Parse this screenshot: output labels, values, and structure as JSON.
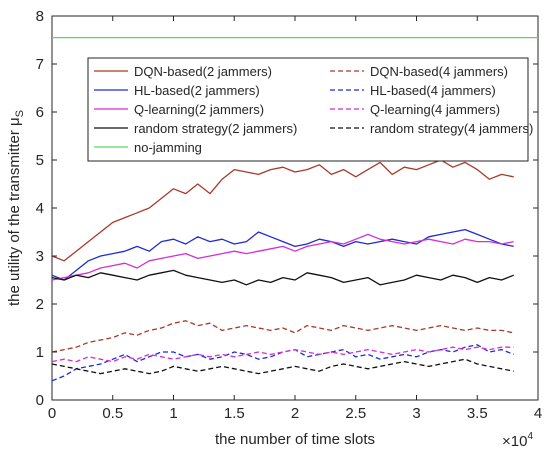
{
  "chart_data": {
    "type": "line",
    "title": "",
    "xlabel": "the number of time slots",
    "ylabel": "the utility of the transmitter μ",
    "ylabel_subscript": "S",
    "x_exponent": "×10",
    "x_exponent_power": "4",
    "xlim": [
      0,
      40000
    ],
    "ylim": [
      0,
      8
    ],
    "xticks": [
      0,
      5000,
      10000,
      15000,
      20000,
      25000,
      30000,
      35000,
      40000
    ],
    "xtick_labels": [
      "0",
      "0.5",
      "1",
      "1.5",
      "2",
      "2.5",
      "3",
      "3.5",
      "4"
    ],
    "yticks": [
      0,
      1,
      2,
      3,
      4,
      5,
      6,
      7,
      8
    ],
    "ytick_labels": [
      "0",
      "1",
      "2",
      "3",
      "4",
      "5",
      "6",
      "7",
      "8"
    ],
    "grid": false,
    "legend_position": "top-left-inside",
    "legend_columns": 2,
    "series": [
      {
        "name": "DQN-based(2 jammers)",
        "color": "#a83a2a",
        "dash": "solid",
        "x": [
          0,
          1000,
          2000,
          3000,
          4000,
          5000,
          6000,
          7000,
          8000,
          9000,
          10000,
          11000,
          12000,
          13000,
          14000,
          15000,
          16000,
          17000,
          18000,
          19000,
          20000,
          21000,
          22000,
          23000,
          24000,
          25000,
          26000,
          27000,
          28000,
          29000,
          30000,
          31000,
          32000,
          33000,
          34000,
          35000,
          36000,
          37000,
          38000
        ],
        "y": [
          3.0,
          2.9,
          3.1,
          3.3,
          3.5,
          3.7,
          3.8,
          3.9,
          4.0,
          4.2,
          4.4,
          4.3,
          4.5,
          4.3,
          4.6,
          4.8,
          4.75,
          4.7,
          4.8,
          4.85,
          4.75,
          4.8,
          4.9,
          4.7,
          4.8,
          4.65,
          4.8,
          4.95,
          4.7,
          4.85,
          4.8,
          4.9,
          5.0,
          4.85,
          4.95,
          4.8,
          4.6,
          4.7,
          4.65
        ]
      },
      {
        "name": "HL-based(2 jammers)",
        "color": "#1f2bd6",
        "dash": "solid",
        "x": [
          0,
          1000,
          2000,
          3000,
          4000,
          5000,
          6000,
          7000,
          8000,
          9000,
          10000,
          11000,
          12000,
          13000,
          14000,
          15000,
          16000,
          17000,
          18000,
          19000,
          20000,
          21000,
          22000,
          23000,
          24000,
          25000,
          26000,
          27000,
          28000,
          29000,
          30000,
          31000,
          32000,
          33000,
          34000,
          35000,
          36000,
          37000,
          38000
        ],
        "y": [
          2.6,
          2.5,
          2.7,
          2.9,
          3.0,
          3.05,
          3.1,
          3.2,
          3.1,
          3.3,
          3.35,
          3.25,
          3.4,
          3.3,
          3.35,
          3.25,
          3.3,
          3.5,
          3.4,
          3.3,
          3.2,
          3.25,
          3.35,
          3.3,
          3.2,
          3.3,
          3.25,
          3.3,
          3.35,
          3.3,
          3.25,
          3.4,
          3.45,
          3.5,
          3.55,
          3.45,
          3.35,
          3.25,
          3.2
        ]
      },
      {
        "name": "Q-learning(2 jammers)",
        "color": "#d42fd4",
        "dash": "solid",
        "x": [
          0,
          1000,
          2000,
          3000,
          4000,
          5000,
          6000,
          7000,
          8000,
          9000,
          10000,
          11000,
          12000,
          13000,
          14000,
          15000,
          16000,
          17000,
          18000,
          19000,
          20000,
          21000,
          22000,
          23000,
          24000,
          25000,
          26000,
          27000,
          28000,
          29000,
          30000,
          31000,
          32000,
          33000,
          34000,
          35000,
          36000,
          37000,
          38000
        ],
        "y": [
          2.5,
          2.55,
          2.6,
          2.65,
          2.75,
          2.8,
          2.85,
          2.75,
          2.9,
          2.95,
          3.0,
          3.05,
          2.95,
          3.0,
          3.05,
          3.1,
          3.05,
          3.1,
          3.15,
          3.2,
          3.1,
          3.2,
          3.25,
          3.3,
          3.25,
          3.35,
          3.45,
          3.35,
          3.3,
          3.25,
          3.3,
          3.35,
          3.3,
          3.25,
          3.35,
          3.3,
          3.3,
          3.25,
          3.3
        ]
      },
      {
        "name": "random strategy(2 jammers)",
        "color": "#111111",
        "dash": "solid",
        "x": [
          0,
          1000,
          2000,
          3000,
          4000,
          5000,
          6000,
          7000,
          8000,
          9000,
          10000,
          11000,
          12000,
          13000,
          14000,
          15000,
          16000,
          17000,
          18000,
          19000,
          20000,
          21000,
          22000,
          23000,
          24000,
          25000,
          26000,
          27000,
          28000,
          29000,
          30000,
          31000,
          32000,
          33000,
          34000,
          35000,
          36000,
          37000,
          38000
        ],
        "y": [
          2.55,
          2.5,
          2.6,
          2.55,
          2.65,
          2.6,
          2.55,
          2.5,
          2.6,
          2.65,
          2.7,
          2.6,
          2.55,
          2.5,
          2.45,
          2.5,
          2.4,
          2.5,
          2.45,
          2.55,
          2.5,
          2.65,
          2.6,
          2.55,
          2.45,
          2.5,
          2.55,
          2.4,
          2.45,
          2.5,
          2.6,
          2.55,
          2.5,
          2.6,
          2.55,
          2.45,
          2.55,
          2.5,
          2.6
        ]
      },
      {
        "name": "no-jamming",
        "color": "#5fd35f",
        "dash": "solid",
        "x": [
          0,
          40000
        ],
        "y": [
          7.55,
          7.55
        ]
      },
      {
        "name": "DQN-based(4 jammers)",
        "color": "#a83a2a",
        "dash": "dashed",
        "x": [
          0,
          1000,
          2000,
          3000,
          4000,
          5000,
          6000,
          7000,
          8000,
          9000,
          10000,
          11000,
          12000,
          13000,
          14000,
          15000,
          16000,
          17000,
          18000,
          19000,
          20000,
          21000,
          22000,
          23000,
          24000,
          25000,
          26000,
          27000,
          28000,
          29000,
          30000,
          31000,
          32000,
          33000,
          34000,
          35000,
          36000,
          37000,
          38000
        ],
        "y": [
          1.0,
          1.05,
          1.1,
          1.2,
          1.25,
          1.3,
          1.4,
          1.35,
          1.45,
          1.5,
          1.6,
          1.65,
          1.55,
          1.6,
          1.45,
          1.5,
          1.55,
          1.5,
          1.45,
          1.5,
          1.4,
          1.55,
          1.5,
          1.45,
          1.55,
          1.5,
          1.45,
          1.5,
          1.55,
          1.5,
          1.45,
          1.5,
          1.55,
          1.5,
          1.45,
          1.5,
          1.45,
          1.45,
          1.4
        ]
      },
      {
        "name": "HL-based(4 jammers)",
        "color": "#1f2bd6",
        "dash": "dashed",
        "x": [
          0,
          1000,
          2000,
          3000,
          4000,
          5000,
          6000,
          7000,
          8000,
          9000,
          10000,
          11000,
          12000,
          13000,
          14000,
          15000,
          16000,
          17000,
          18000,
          19000,
          20000,
          21000,
          22000,
          23000,
          24000,
          25000,
          26000,
          27000,
          28000,
          29000,
          30000,
          31000,
          32000,
          33000,
          34000,
          35000,
          36000,
          37000,
          38000
        ],
        "y": [
          0.4,
          0.5,
          0.65,
          0.7,
          0.75,
          0.85,
          0.95,
          0.8,
          0.9,
          1.0,
          1.0,
          0.9,
          0.95,
          0.85,
          0.9,
          1.0,
          0.95,
          0.85,
          0.9,
          1.0,
          1.05,
          0.9,
          0.95,
          1.0,
          1.05,
          0.9,
          0.95,
          0.85,
          0.9,
          0.95,
          0.9,
          1.0,
          1.05,
          1.0,
          1.1,
          1.15,
          1.0,
          1.05,
          0.95
        ]
      },
      {
        "name": "Q-learning(4 jammers)",
        "color": "#d42fd4",
        "dash": "dashed",
        "x": [
          0,
          1000,
          2000,
          3000,
          4000,
          5000,
          6000,
          7000,
          8000,
          9000,
          10000,
          11000,
          12000,
          13000,
          14000,
          15000,
          16000,
          17000,
          18000,
          19000,
          20000,
          21000,
          22000,
          23000,
          24000,
          25000,
          26000,
          27000,
          28000,
          29000,
          30000,
          31000,
          32000,
          33000,
          34000,
          35000,
          36000,
          37000,
          38000
        ],
        "y": [
          0.8,
          0.85,
          0.8,
          0.9,
          0.85,
          0.8,
          0.9,
          0.85,
          0.95,
          0.9,
          0.85,
          0.9,
          0.95,
          0.9,
          0.95,
          0.9,
          0.95,
          1.0,
          0.95,
          1.0,
          1.05,
          1.0,
          0.95,
          1.0,
          0.95,
          1.0,
          1.05,
          1.0,
          0.95,
          1.0,
          1.05,
          1.0,
          1.05,
          1.1,
          1.05,
          1.1,
          1.05,
          1.1,
          1.1
        ]
      },
      {
        "name": "random strategy(4 jammers)",
        "color": "#111111",
        "dash": "dashed",
        "x": [
          0,
          1000,
          2000,
          3000,
          4000,
          5000,
          6000,
          7000,
          8000,
          9000,
          10000,
          11000,
          12000,
          13000,
          14000,
          15000,
          16000,
          17000,
          18000,
          19000,
          20000,
          21000,
          22000,
          23000,
          24000,
          25000,
          26000,
          27000,
          28000,
          29000,
          30000,
          31000,
          32000,
          33000,
          34000,
          35000,
          36000,
          37000,
          38000
        ],
        "y": [
          0.75,
          0.7,
          0.65,
          0.6,
          0.55,
          0.6,
          0.65,
          0.6,
          0.55,
          0.6,
          0.7,
          0.65,
          0.6,
          0.65,
          0.7,
          0.65,
          0.6,
          0.55,
          0.6,
          0.65,
          0.7,
          0.65,
          0.6,
          0.7,
          0.75,
          0.7,
          0.65,
          0.7,
          0.75,
          0.8,
          0.75,
          0.7,
          0.75,
          0.8,
          0.85,
          0.75,
          0.7,
          0.65,
          0.6
        ]
      }
    ]
  }
}
